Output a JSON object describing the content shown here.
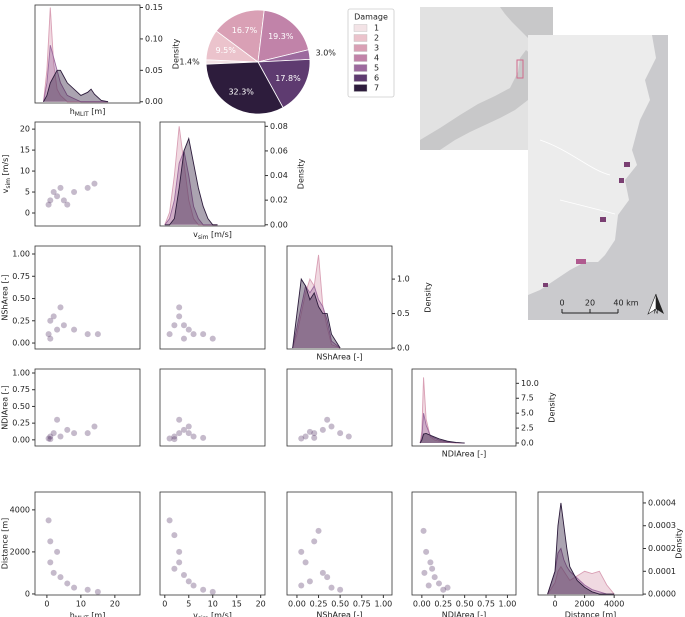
{
  "chart_data": [
    {
      "type": "pie",
      "legend_title": "Damage",
      "categories": [
        "1",
        "2",
        "3",
        "4",
        "5",
        "6",
        "7"
      ],
      "values": [
        1.4,
        9.5,
        16.7,
        19.3,
        3.0,
        17.8,
        32.3
      ],
      "value_labels": [
        "1.4%",
        "9.5%",
        "16.7%",
        "19.3%",
        "3.0%",
        "17.8%",
        "32.3%"
      ],
      "colors": [
        "#f3e3e6",
        "#ebc3cc",
        "#d9a0b5",
        "#c183a9",
        "#9c6a9e",
        "#5e3b70",
        "#2d1c3c"
      ]
    },
    {
      "type": "area",
      "xlim": [
        -3.5,
        27.4
      ],
      "ylim": [
        -0.002,
        0.154
      ],
      "yticks": [
        {
          "value": 0,
          "label": "0.00"
        },
        {
          "value": 0.05,
          "label": "0.05"
        },
        {
          "value": 0.1,
          "label": "0.10"
        },
        {
          "value": 0.15,
          "label": "0.15"
        }
      ],
      "xlabel": {
        "base": "h",
        "sub": "MLIT",
        "rest": " [m]"
      },
      "ylabel": "Density",
      "x": [
        -1,
        0,
        1,
        2,
        3,
        4,
        5,
        6,
        8,
        10,
        12,
        13,
        14,
        16,
        18
      ],
      "series": [
        {
          "color": "#d9a0b5",
          "values": [
            0,
            0.05,
            0.15,
            0.06,
            0.02,
            0.01,
            0.005,
            0,
            0,
            0,
            0,
            0,
            0,
            0,
            0
          ]
        },
        {
          "color": "#9c6a9e",
          "values": [
            0,
            0.03,
            0.09,
            0.07,
            0.05,
            0.03,
            0.02,
            0.01,
            0.005,
            0,
            0,
            0,
            0,
            0,
            0
          ]
        },
        {
          "color": "#2d1c3c",
          "values": [
            0,
            0.01,
            0.03,
            0.04,
            0.05,
            0.05,
            0.04,
            0.03,
            0.02,
            0.01,
            0.015,
            0.02,
            0.012,
            0.002,
            0
          ]
        }
      ]
    },
    {
      "type": "scatter",
      "xlim": [
        -3.5,
        27.4
      ],
      "ylim": [
        -3.1,
        21.7
      ],
      "yticks": [
        0,
        5,
        10,
        15,
        20
      ],
      "ylabel": {
        "base": "v",
        "sub": "sim",
        "rest": " [m/s]"
      },
      "color": "#5a3a6b",
      "x": [
        0.5,
        1,
        2,
        3,
        4,
        5,
        8,
        12,
        14,
        6
      ],
      "y": [
        2,
        3,
        5,
        4,
        6,
        3,
        5,
        6,
        7,
        2
      ]
    },
    {
      "type": "area",
      "xlim": [
        -1,
        20.9
      ],
      "ylim": [
        -0.001,
        0.0835
      ],
      "yticks": [
        {
          "value": 0,
          "label": "0.00"
        },
        {
          "value": 0.02,
          "label": "0.02"
        },
        {
          "value": 0.04,
          "label": "0.04"
        },
        {
          "value": 0.06,
          "label": "0.06"
        },
        {
          "value": 0.08,
          "label": "0.08"
        }
      ],
      "xlabel": {
        "base": "v",
        "sub": "sim",
        "rest": " [m/s]"
      },
      "ylabel": "Density",
      "x": [
        0,
        1,
        2,
        3,
        4,
        5,
        6,
        7,
        8,
        9,
        10,
        11
      ],
      "series": [
        {
          "color": "#d9a0b5",
          "values": [
            0,
            0.01,
            0.04,
            0.08,
            0.05,
            0.02,
            0.005,
            0,
            0,
            0,
            0,
            0
          ]
        },
        {
          "color": "#9c6a9e",
          "values": [
            0,
            0.005,
            0.02,
            0.05,
            0.06,
            0.04,
            0.015,
            0.005,
            0,
            0,
            0,
            0
          ]
        },
        {
          "color": "#2d1c3c",
          "values": [
            0,
            0,
            0.005,
            0.03,
            0.06,
            0.07,
            0.05,
            0.03,
            0.015,
            0.005,
            0,
            0
          ]
        }
      ]
    },
    {
      "type": "scatter",
      "xlim": [
        -3.5,
        27.4
      ],
      "ylim": [
        -0.067,
        1.09
      ],
      "yticks": [
        {
          "value": 0,
          "label": "0.00"
        },
        {
          "value": 0.25,
          "label": "0.25"
        },
        {
          "value": 0.5,
          "label": "0.50"
        },
        {
          "value": 0.75,
          "label": "0.75"
        },
        {
          "value": 1,
          "label": "1.00"
        }
      ],
      "ylabel": "NShArea [-]",
      "color": "#5a3a6b",
      "x": [
        0.5,
        1,
        2,
        3,
        5,
        8,
        12,
        15,
        4,
        1
      ],
      "y": [
        0.1,
        0.25,
        0.3,
        0.15,
        0.2,
        0.15,
        0.1,
        0.1,
        0.4,
        0.05
      ]
    },
    {
      "type": "scatter",
      "xlim": [
        -1,
        20.9
      ],
      "ylim": [
        -0.067,
        1.09
      ],
      "color": "#5a3a6b",
      "x": [
        1,
        2,
        3,
        4,
        5,
        6,
        8,
        3,
        4,
        10
      ],
      "y": [
        0.1,
        0.2,
        0.3,
        0.2,
        0.15,
        0.1,
        0.1,
        0.4,
        0.05,
        0.05
      ]
    },
    {
      "type": "area",
      "xlim": [
        -0.115,
        1.1
      ],
      "ylim": [
        -0.014,
        1.48
      ],
      "yticks": [
        {
          "value": 0,
          "label": "0.0"
        },
        {
          "value": 0.5,
          "label": "0.5"
        },
        {
          "value": 1,
          "label": "1.0"
        }
      ],
      "xlabel": "NShArea [-]",
      "ylabel": "Density",
      "x": [
        -0.05,
        0,
        0.05,
        0.1,
        0.15,
        0.2,
        0.25,
        0.3,
        0.35,
        0.4,
        0.5
      ],
      "series": [
        {
          "color": "#d9a0b5",
          "values": [
            0,
            0.2,
            0.5,
            0.8,
            1.0,
            0.9,
            1.35,
            0.6,
            0.3,
            0.05,
            0
          ]
        },
        {
          "color": "#9c6a9e",
          "values": [
            0,
            0.3,
            0.6,
            0.9,
            0.8,
            0.9,
            0.7,
            0.6,
            0.4,
            0.1,
            0
          ]
        },
        {
          "color": "#2d1c3c",
          "values": [
            0,
            0.5,
            1.0,
            0.9,
            0.7,
            0.8,
            0.6,
            0.5,
            0.5,
            0.2,
            0
          ]
        }
      ]
    },
    {
      "type": "scatter",
      "xlim": [
        -3.5,
        27.4
      ],
      "ylim": [
        -0.092,
        1.06
      ],
      "yticks": [
        {
          "value": 0,
          "label": "0.00"
        },
        {
          "value": 0.25,
          "label": "0.25"
        },
        {
          "value": 0.5,
          "label": "0.50"
        },
        {
          "value": 0.75,
          "label": "0.75"
        },
        {
          "value": 1,
          "label": "1.00"
        }
      ],
      "ylabel": "NDIArea [-]",
      "color": "#5a3a6b",
      "x": [
        0.5,
        1,
        2,
        4,
        6,
        8,
        12,
        14,
        3,
        1
      ],
      "y": [
        0.02,
        0.05,
        0.1,
        0.05,
        0.15,
        0.1,
        0.1,
        0.2,
        0.3,
        0.01
      ]
    },
    {
      "type": "scatter",
      "xlim": [
        -1,
        20.9
      ],
      "ylim": [
        -0.092,
        1.06
      ],
      "color": "#5a3a6b",
      "x": [
        1,
        2,
        3,
        4,
        5,
        6,
        8,
        3,
        5,
        2
      ],
      "y": [
        0.02,
        0.05,
        0.1,
        0.15,
        0.1,
        0.05,
        0.03,
        0.3,
        0.2,
        0.01
      ]
    },
    {
      "type": "scatter",
      "xlim": [
        -0.115,
        1.1
      ],
      "ylim": [
        -0.092,
        1.06
      ],
      "color": "#5a3a6b",
      "x": [
        0.05,
        0.1,
        0.2,
        0.3,
        0.4,
        0.5,
        0.6,
        0.2,
        0.15,
        0.35
      ],
      "y": [
        0.02,
        0.05,
        0.1,
        0.15,
        0.2,
        0.1,
        0.05,
        0.03,
        0.12,
        0.3
      ]
    },
    {
      "type": "area",
      "xlim": [
        -0.115,
        1.1
      ],
      "ylim": [
        -0.5,
        12.4
      ],
      "yticks": [
        {
          "value": 0,
          "label": "0.0"
        },
        {
          "value": 2.5,
          "label": "2.5"
        },
        {
          "value": 5,
          "label": "5.0"
        },
        {
          "value": 7.5,
          "label": "7.5"
        },
        {
          "value": 10,
          "label": "10.0"
        }
      ],
      "xlabel": "NDIArea [-]",
      "ylabel": "Density",
      "x": [
        -0.02,
        0,
        0.02,
        0.05,
        0.1,
        0.15,
        0.2,
        0.3,
        0.4,
        0.5
      ],
      "series": [
        {
          "color": "#d9a0b5",
          "values": [
            0,
            2,
            11,
            4,
            1,
            0.5,
            0.3,
            0.1,
            0,
            0
          ]
        },
        {
          "color": "#9c6a9e",
          "values": [
            0,
            1,
            5,
            3,
            1.2,
            0.8,
            0.5,
            0.2,
            0.05,
            0
          ]
        },
        {
          "color": "#2d1c3c",
          "values": [
            0,
            0.5,
            1.5,
            1.6,
            1.3,
            1,
            0.7,
            0.3,
            0.1,
            0
          ]
        }
      ]
    },
    {
      "type": "scatter",
      "xlim": [
        -3.5,
        27.4
      ],
      "ylim": [
        -50,
        4850
      ],
      "xticks": [
        0,
        10,
        20
      ],
      "yticks": [
        0,
        2000,
        4000
      ],
      "xlabel": {
        "base": "h",
        "sub": "MLIT",
        "rest": " [m]"
      },
      "ylabel": "Distance [m]",
      "color": "#5a3a6b",
      "x": [
        0.5,
        1,
        1,
        2,
        4,
        6,
        8,
        12,
        15,
        3
      ],
      "y": [
        3500,
        2500,
        1500,
        1000,
        800,
        500,
        300,
        200,
        100,
        2000
      ]
    },
    {
      "type": "scatter",
      "xlim": [
        -1,
        20.9
      ],
      "ylim": [
        -50,
        4850
      ],
      "xticks": [
        0,
        5,
        10,
        15,
        20
      ],
      "xlabel": {
        "base": "v",
        "sub": "sim",
        "rest": " [m/s]"
      },
      "color": "#5a3a6b",
      "x": [
        1,
        2,
        3,
        2,
        4,
        5,
        6,
        8,
        3,
        10
      ],
      "y": [
        3500,
        2800,
        2000,
        1200,
        900,
        600,
        400,
        200,
        1500,
        100
      ]
    },
    {
      "type": "scatter",
      "xlim": [
        -0.115,
        1.1
      ],
      "ylim": [
        -50,
        4850
      ],
      "xticks": [
        {
          "value": 0,
          "label": "0.00"
        },
        {
          "value": 0.25,
          "label": "0.25"
        },
        {
          "value": 0.5,
          "label": "0.50"
        },
        {
          "value": 0.75,
          "label": "0.75"
        },
        {
          "value": 1,
          "label": "1.00"
        }
      ],
      "xlabel": "NShArea [-]",
      "color": "#5a3a6b",
      "x": [
        0.05,
        0.1,
        0.2,
        0.25,
        0.3,
        0.15,
        0.35,
        0.4,
        0.05,
        0.5
      ],
      "y": [
        2000,
        1500,
        2500,
        3000,
        1000,
        600,
        800,
        300,
        400,
        200
      ]
    },
    {
      "type": "scatter",
      "xlim": [
        -0.115,
        1.1
      ],
      "ylim": [
        -50,
        4850
      ],
      "xticks": [
        {
          "value": 0,
          "label": "0.00"
        },
        {
          "value": 0.25,
          "label": "0.25"
        },
        {
          "value": 0.5,
          "label": "0.50"
        },
        {
          "value": 0.75,
          "label": "0.75"
        },
        {
          "value": 1,
          "label": "1.00"
        }
      ],
      "xlabel": "NDIArea [-]",
      "color": "#5a3a6b",
      "x": [
        0.02,
        0.05,
        0.1,
        0.03,
        0.15,
        0.2,
        0.3,
        0.08,
        0.12,
        0.25
      ],
      "y": [
        3000,
        2000,
        1500,
        1000,
        800,
        500,
        300,
        400,
        1200,
        200
      ]
    },
    {
      "type": "area",
      "xlim": [
        -1150,
        5950
      ],
      "ylim": [
        -4e-06,
        0.000448
      ],
      "xticks": [
        0,
        2000,
        4000
      ],
      "yticks": [
        {
          "value": 0,
          "label": "0.0000"
        },
        {
          "value": 0.0001,
          "label": "0.0001"
        },
        {
          "value": 0.0002,
          "label": "0.0002"
        },
        {
          "value": 0.0003,
          "label": "0.0003"
        },
        {
          "value": 0.0004,
          "label": "0.0004"
        }
      ],
      "xlabel": "Distance [m]",
      "ylabel": "Density",
      "x": [
        -500,
        0,
        200,
        400,
        600,
        800,
        1000,
        1500,
        2000,
        2500,
        3000,
        3500,
        4000
      ],
      "series": [
        {
          "color": "#d9a0b5",
          "values": [
            0,
            5e-05,
            0.0001,
            0.00012,
            0.0001,
            8e-05,
            6e-05,
            8e-05,
            0.0001,
            9e-05,
            0.0001,
            4e-05,
            0
          ]
        },
        {
          "color": "#9c6a9e",
          "values": [
            0,
            0.0001,
            0.00018,
            0.0002,
            0.00015,
            0.00012,
            0.0001,
            7e-05,
            4e-05,
            2e-05,
            1e-05,
            0,
            0
          ]
        },
        {
          "color": "#2d1c3c",
          "values": [
            0,
            0.0001,
            0.0003,
            0.0004,
            0.0003,
            0.0002,
            0.00012,
            6e-05,
            3e-05,
            1e-05,
            0,
            0,
            0
          ]
        }
      ]
    }
  ],
  "map": {
    "scale_labels": [
      "0",
      "20",
      "40 km"
    ],
    "north": "N"
  }
}
